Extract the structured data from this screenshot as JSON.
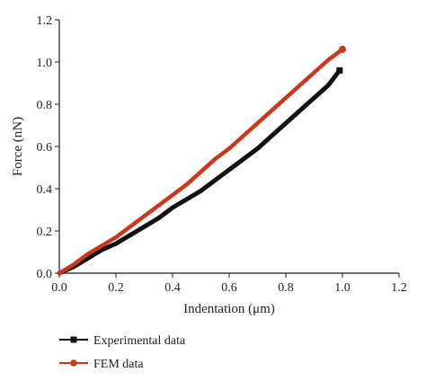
{
  "chart_data": {
    "type": "line",
    "xlabel": "Indentation (μm)",
    "ylabel": "Force (nN)",
    "xlim": [
      0.0,
      1.2
    ],
    "ylim": [
      0.0,
      1.2
    ],
    "xticks": [
      "0.0",
      "0.2",
      "0.4",
      "0.6",
      "0.8",
      "1.0",
      "1.2"
    ],
    "yticks": [
      "0.0",
      "0.2",
      "0.4",
      "0.6",
      "0.8",
      "1.0",
      "1.2"
    ],
    "grid": false,
    "legend_placement": "bottom-left",
    "series": [
      {
        "name": "Experimental data",
        "color": "#111111",
        "marker": "square",
        "x": [
          0.0,
          0.05,
          0.1,
          0.15,
          0.2,
          0.25,
          0.3,
          0.35,
          0.4,
          0.45,
          0.5,
          0.55,
          0.6,
          0.65,
          0.7,
          0.75,
          0.8,
          0.85,
          0.9,
          0.95,
          0.99
        ],
        "y": [
          0.0,
          0.03,
          0.07,
          0.11,
          0.14,
          0.18,
          0.22,
          0.26,
          0.31,
          0.35,
          0.39,
          0.44,
          0.49,
          0.54,
          0.59,
          0.65,
          0.71,
          0.77,
          0.83,
          0.89,
          0.96
        ]
      },
      {
        "name": "FEM data",
        "color": "#c8381f",
        "marker": "circle",
        "x": [
          0.0,
          0.05,
          0.1,
          0.15,
          0.2,
          0.25,
          0.3,
          0.35,
          0.4,
          0.45,
          0.5,
          0.55,
          0.6,
          0.65,
          0.7,
          0.75,
          0.8,
          0.85,
          0.9,
          0.95,
          1.0
        ],
        "y": [
          0.0,
          0.04,
          0.09,
          0.13,
          0.17,
          0.22,
          0.27,
          0.32,
          0.37,
          0.42,
          0.48,
          0.54,
          0.59,
          0.65,
          0.71,
          0.77,
          0.83,
          0.89,
          0.95,
          1.01,
          1.06
        ]
      }
    ]
  }
}
